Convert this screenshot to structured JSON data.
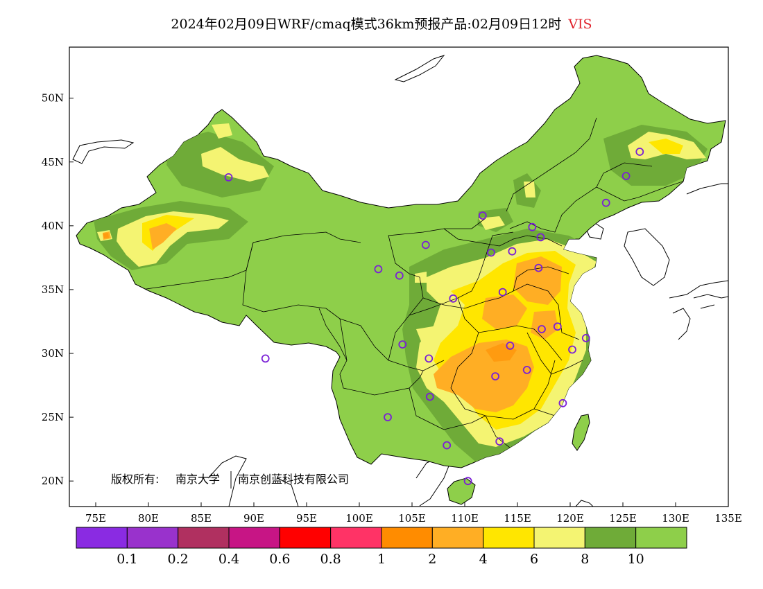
{
  "title": {
    "main": "2024年02月09日WRF/cmaq模式36km预报产品:02月09日12时",
    "variable": "VIS",
    "variable_color": "#e0202a"
  },
  "axes": {
    "lat_labels": [
      "50N",
      "45N",
      "40N",
      "35N",
      "30N",
      "25N",
      "20N"
    ],
    "lon_labels": [
      "75E",
      "80E",
      "85E",
      "90E",
      "95E",
      "100E",
      "105E",
      "110E",
      "115E",
      "120E",
      "125E",
      "130E",
      "135E"
    ],
    "lon_range": [
      72.5,
      135
    ],
    "lat_range": [
      18,
      54
    ]
  },
  "copyright": {
    "label": "版权所有:",
    "org1": "南京大学",
    "org2": "南京创蓝科技有限公司"
  },
  "legend": {
    "colors": [
      "#8a2be2",
      "#9932cc",
      "#b03060",
      "#c71585",
      "#ff0000",
      "#ff3366",
      "#ff8c00",
      "#ffae24",
      "#ffe600",
      "#f4f472",
      "#6fab38",
      "#8ecf4a"
    ],
    "thresholds": [
      "0.1",
      "0.2",
      "0.4",
      "0.6",
      "0.8",
      "1",
      "2",
      "4",
      "6",
      "8",
      "10"
    ]
  },
  "stations": [
    [
      87.6,
      43.8
    ],
    [
      126.6,
      45.8
    ],
    [
      125.3,
      43.9
    ],
    [
      123.4,
      41.8
    ],
    [
      111.7,
      40.8
    ],
    [
      116.4,
      39.9
    ],
    [
      117.2,
      39.1
    ],
    [
      114.5,
      38.0
    ],
    [
      112.5,
      37.9
    ],
    [
      106.3,
      38.5
    ],
    [
      101.8,
      36.6
    ],
    [
      103.8,
      36.1
    ],
    [
      117.0,
      36.7
    ],
    [
      113.6,
      34.8
    ],
    [
      108.9,
      34.3
    ],
    [
      117.3,
      31.9
    ],
    [
      118.8,
      32.1
    ],
    [
      121.5,
      31.2
    ],
    [
      120.2,
      30.3
    ],
    [
      114.3,
      30.6
    ],
    [
      104.1,
      30.7
    ],
    [
      106.6,
      29.6
    ],
    [
      112.9,
      28.2
    ],
    [
      115.9,
      28.7
    ],
    [
      119.3,
      26.1
    ],
    [
      106.7,
      26.6
    ],
    [
      102.7,
      25.0
    ],
    [
      113.3,
      23.1
    ],
    [
      108.3,
      22.8
    ],
    [
      110.3,
      20.0
    ],
    [
      91.1,
      29.6
    ]
  ]
}
